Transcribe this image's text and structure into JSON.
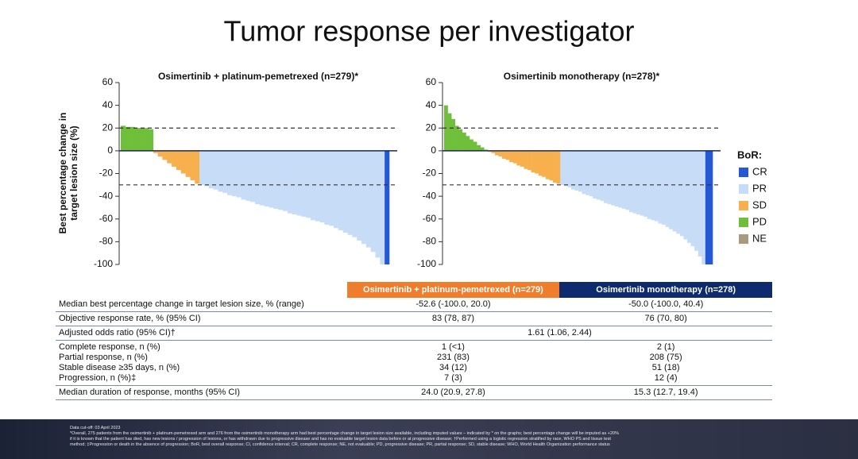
{
  "title": "Tumor response per investigator",
  "chart_data": [
    {
      "type": "waterfall",
      "title": "Osimertinib + platinum-pemetrexed (n=279)*",
      "ylabel": [
        "Best percentage change in",
        "target lesion size (%)"
      ],
      "ylim": [
        -100,
        60
      ],
      "yticks": [
        -100,
        -80,
        -60,
        -40,
        -20,
        0,
        20,
        40,
        60
      ],
      "reference_lines": [
        20,
        -30
      ],
      "series": [
        {
          "name": "CR",
          "color": "#2459d6",
          "values": [
            -100
          ]
        },
        {
          "name": "PR",
          "color": "#c6dcf7",
          "values": [
            -30,
            -31,
            -33,
            -34,
            -36,
            -37,
            -39,
            -40,
            -41,
            -43,
            -44,
            -45,
            -47,
            -48,
            -49,
            -50,
            -51,
            -52,
            -53,
            -55,
            -56,
            -57,
            -58,
            -59,
            -61,
            -62,
            -63,
            -65,
            -66,
            -68,
            -70,
            -72,
            -74,
            -76,
            -79,
            -82,
            -85,
            -89,
            -94,
            -100
          ]
        },
        {
          "name": "SD",
          "color": "#f7b04d",
          "values": [
            -2,
            -5,
            -8,
            -11,
            -14,
            -17,
            -20,
            -23,
            -26,
            -29
          ]
        },
        {
          "name": "PD",
          "color": "#6fbf3a",
          "values": [
            22,
            21,
            21,
            20,
            20,
            20,
            19
          ]
        }
      ]
    },
    {
      "type": "waterfall",
      "title": "Osimertinib monotherapy (n=278)*",
      "ylim": [
        -100,
        60
      ],
      "yticks": [
        -100,
        -80,
        -60,
        -40,
        -20,
        0,
        20,
        40,
        60
      ],
      "reference_lines": [
        20,
        -30
      ],
      "legend_title": "BoR:",
      "series": [
        {
          "name": "CR",
          "color": "#2459d6",
          "values": [
            -100,
            -100
          ]
        },
        {
          "name": "PR",
          "color": "#c6dcf7",
          "values": [
            -30,
            -31,
            -32,
            -34,
            -35,
            -36,
            -38,
            -39,
            -40,
            -42,
            -43,
            -44,
            -46,
            -47,
            -48,
            -49,
            -50,
            -51,
            -52,
            -54,
            -55,
            -56,
            -57,
            -58,
            -60,
            -61,
            -62,
            -64,
            -65,
            -67,
            -69,
            -71,
            -73,
            -75,
            -78,
            -81,
            -84,
            -88,
            -93,
            -100
          ]
        },
        {
          "name": "SD",
          "color": "#f7b04d",
          "values": [
            -1,
            -2,
            -4,
            -5,
            -7,
            -8,
            -10,
            -11,
            -13,
            -14,
            -16,
            -17,
            -19,
            -20,
            -22,
            -23,
            -25,
            -26,
            -28,
            -29
          ]
        },
        {
          "name": "PD",
          "color": "#6fbf3a",
          "values": [
            40,
            33,
            28,
            22,
            19,
            16,
            13,
            10,
            8,
            5,
            3,
            1
          ]
        },
        {
          "name": "NE",
          "color": "#a89a7c",
          "values": []
        }
      ]
    }
  ],
  "table": {
    "header": [
      "Osimertinib + platinum-pemetrexed (n=279)",
      "Osimertinib monotherapy (n=278)"
    ],
    "groups": [
      [
        [
          "Median best percentage change in target lesion size, % (range)",
          "-52.6 (-100.0, 20.0)",
          "-50.0 (-100.0, 40.4)"
        ]
      ],
      [
        [
          "Objective response rate, % (95% CI)",
          "83 (78, 87)",
          "76 (70, 80)"
        ]
      ],
      [
        [
          "Adjusted odds ratio (95% CI)†",
          "1.61 (1.06, 2.44)"
        ]
      ],
      [
        [
          "Complete response, n (%)",
          "1 (<1)",
          "2 (1)"
        ],
        [
          "Partial response, n (%)",
          "231 (83)",
          "208 (75)"
        ],
        [
          "Stable disease ≥35 days, n (%)",
          "34 (12)",
          "51 (18)"
        ],
        [
          "Progression, n (%)‡",
          "7 (3)",
          "12 (4)"
        ]
      ],
      [
        [
          "Median duration of response, months (95% CI)",
          "24.0 (20.9, 27.8)",
          "15.3 (12.7, 19.4)"
        ]
      ]
    ]
  },
  "footer": [
    "Data cut-off: 03 April 2023",
    "*Overall, 275 patients from the osimertinib + platinum-pemetrexed arm and 276 from the osimertinib monotherapy arm had best percentage change in target lesion size available, including imputed values – indicated by * on the graphs; best percentage change will be imputed as +20%",
    "if it is known that the patient has died, has new lesions / progression of lesions, or has withdrawn due to progressive disease and has no evaluable target lesion data before or at progressive disease; †Performed using a logistic regression stratified by race, WHO PS and tissue test",
    "method; ‡Progression or death in the absence of progression; BoR, best overall response; CI, confidence interval; CR, complete response; NE, not evaluable; PD, progressive disease; PR, partial response; SD, stable disease; WHO, World Health Organization performance status"
  ]
}
